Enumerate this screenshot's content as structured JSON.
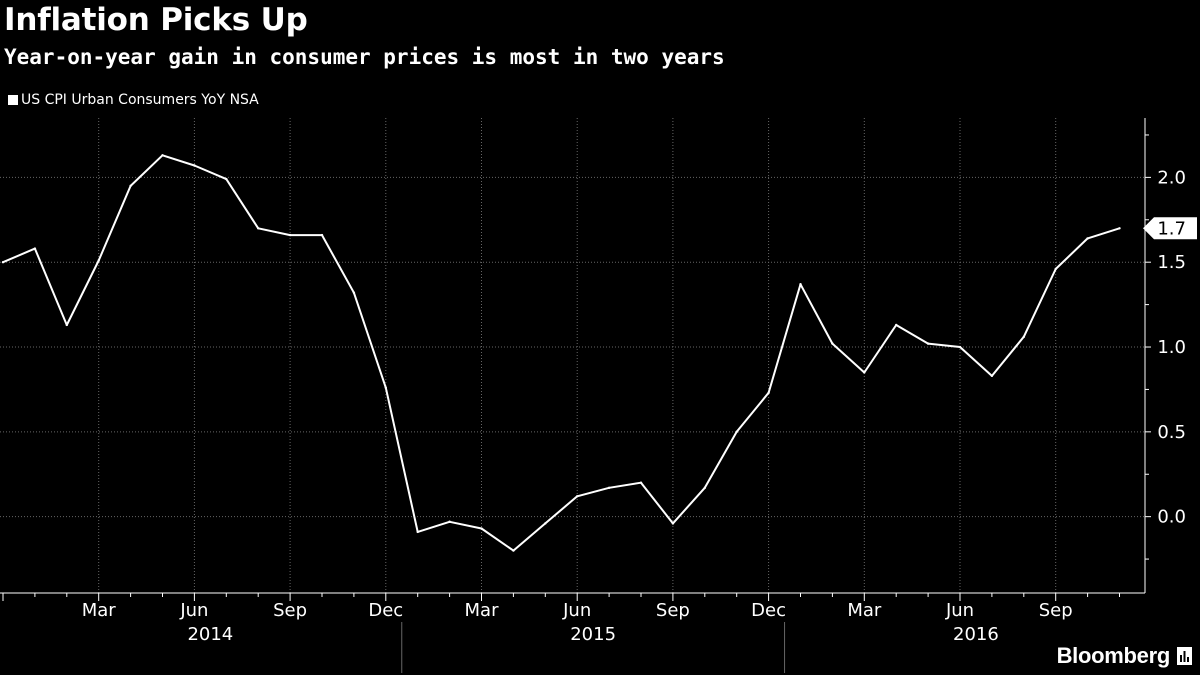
{
  "header": {
    "title": "Inflation Picks Up",
    "subtitle": "Year-on-year gain in consumer prices is most in two years"
  },
  "footer": {
    "logo_text": "Bloomberg",
    "logo_icon": "bloomberg-terminal-icon"
  },
  "colors": {
    "background": "#000000",
    "line": "#ffffff",
    "grid": "#666666"
  },
  "chart_data": {
    "type": "line",
    "title": "Inflation Picks Up",
    "subtitle": "Year-on-year gain in consumer prices is most in two years",
    "xlabel": "",
    "ylabel": "",
    "legend": {
      "placement": "top-left"
    },
    "series": [
      {
        "name": "US CPI Urban Consumers YoY NSA",
        "x": [
          "2013-12",
          "2014-01",
          "2014-02",
          "2014-03",
          "2014-04",
          "2014-05",
          "2014-06",
          "2014-07",
          "2014-08",
          "2014-09",
          "2014-10",
          "2014-11",
          "2014-12",
          "2015-01",
          "2015-02",
          "2015-03",
          "2015-04",
          "2015-05",
          "2015-06",
          "2015-07",
          "2015-08",
          "2015-09",
          "2015-10",
          "2015-11",
          "2015-12",
          "2016-01",
          "2016-02",
          "2016-03",
          "2016-04",
          "2016-05",
          "2016-06",
          "2016-07",
          "2016-08",
          "2016-09",
          "2016-10",
          "2016-11"
        ],
        "values": [
          1.5,
          1.58,
          1.13,
          1.51,
          1.95,
          2.13,
          2.07,
          1.99,
          1.7,
          1.66,
          1.66,
          1.32,
          0.76,
          -0.09,
          -0.03,
          -0.07,
          -0.2,
          -0.04,
          0.12,
          0.17,
          0.2,
          -0.04,
          0.17,
          0.5,
          0.73,
          1.37,
          1.02,
          0.85,
          1.13,
          1.02,
          1.0,
          0.83,
          1.06,
          1.46,
          1.64,
          1.7
        ]
      }
    ],
    "last_value_label": "1.7",
    "y_ticks": [
      0.0,
      0.5,
      1.0,
      1.5,
      2.0
    ],
    "y_tick_labels": [
      "0.0",
      "0.5",
      "1.0",
      "1.5",
      "2.0"
    ],
    "ylim": [
      -0.45,
      2.35
    ],
    "y_axis_position": "right",
    "grid": true,
    "x_axis": {
      "month_labels": [
        {
          "label": "Mar",
          "date": "2014-03"
        },
        {
          "label": "Jun",
          "date": "2014-06"
        },
        {
          "label": "Sep",
          "date": "2014-09"
        },
        {
          "label": "Dec",
          "date": "2014-12"
        },
        {
          "label": "Mar",
          "date": "2015-03"
        },
        {
          "label": "Jun",
          "date": "2015-06"
        },
        {
          "label": "Sep",
          "date": "2015-09"
        },
        {
          "label": "Dec",
          "date": "2015-12"
        },
        {
          "label": "Mar",
          "date": "2016-03"
        },
        {
          "label": "Jun",
          "date": "2016-06"
        },
        {
          "label": "Sep",
          "date": "2016-09"
        }
      ],
      "year_labels": [
        {
          "label": "2014",
          "year": 2014
        },
        {
          "label": "2015",
          "year": 2015
        },
        {
          "label": "2016",
          "year": 2016
        }
      ]
    }
  }
}
